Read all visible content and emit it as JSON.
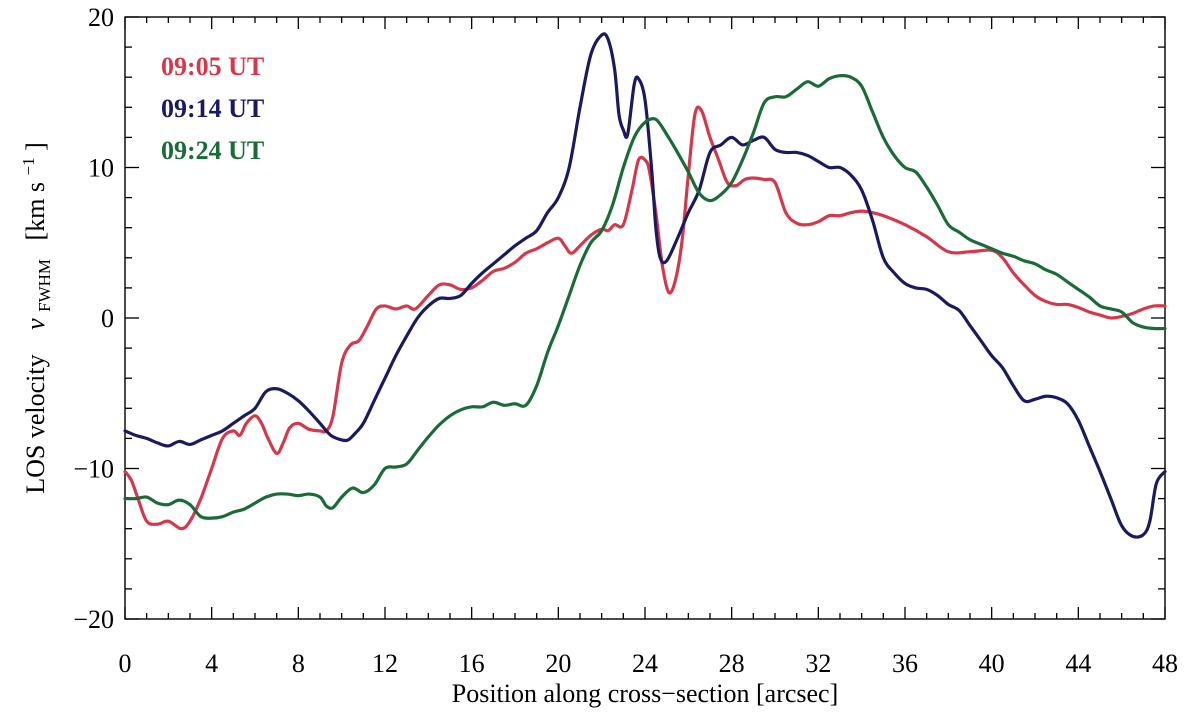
{
  "chart_data": {
    "type": "line",
    "title": "",
    "xlabel": "Position along cross−section   [arcsec]",
    "ylabel": {
      "prefix": "LOS velocity",
      "var": "v",
      "sub": "FWHM",
      "unit_open": "[km s",
      "sup": "−1",
      "unit_close": "]"
    },
    "xlim": [
      0,
      48
    ],
    "ylim": [
      -20,
      20
    ],
    "xticks": [
      0,
      4,
      8,
      12,
      16,
      20,
      24,
      28,
      32,
      36,
      40,
      44,
      48
    ],
    "xtick_labels": [
      "0",
      "4",
      "8",
      "12",
      "16",
      "20",
      "24",
      "28",
      "32",
      "36",
      "40",
      "44",
      "48"
    ],
    "yticks": [
      -20,
      -10,
      0,
      10,
      20
    ],
    "ytick_labels": [
      "−20",
      "−10",
      "0",
      "10",
      "20"
    ],
    "grid": false,
    "legend_position": "top-left",
    "series": [
      {
        "name": "09:05 UT",
        "color": "#d4384a",
        "points": [
          [
            0,
            -10.2
          ],
          [
            0.3,
            -10.8
          ],
          [
            0.6,
            -12
          ],
          [
            1,
            -13.5
          ],
          [
            1.5,
            -13.7
          ],
          [
            2,
            -13.5
          ],
          [
            2.6,
            -14
          ],
          [
            3,
            -13.5
          ],
          [
            3.5,
            -12
          ],
          [
            4,
            -10
          ],
          [
            4.5,
            -8
          ],
          [
            5,
            -7.5
          ],
          [
            5.3,
            -7.8
          ],
          [
            5.6,
            -7
          ],
          [
            6,
            -6.5
          ],
          [
            6.3,
            -7
          ],
          [
            6.6,
            -8
          ],
          [
            7,
            -9
          ],
          [
            7.3,
            -8.3
          ],
          [
            7.6,
            -7.3
          ],
          [
            8,
            -7
          ],
          [
            8.5,
            -7.4
          ],
          [
            9,
            -7.5
          ],
          [
            9.3,
            -7.5
          ],
          [
            9.6,
            -6.5
          ],
          [
            10,
            -3
          ],
          [
            10.4,
            -1.8
          ],
          [
            10.8,
            -1.5
          ],
          [
            11.2,
            -0.5
          ],
          [
            11.6,
            0.6
          ],
          [
            12,
            0.8
          ],
          [
            12.5,
            0.6
          ],
          [
            13,
            0.8
          ],
          [
            13.4,
            0.6
          ],
          [
            14,
            1.5
          ],
          [
            14.5,
            2.2
          ],
          [
            15,
            2.2
          ],
          [
            15.5,
            1.9
          ],
          [
            16,
            2
          ],
          [
            16.5,
            2.5
          ],
          [
            17,
            3.1
          ],
          [
            17.5,
            3.3
          ],
          [
            18,
            3.7
          ],
          [
            18.5,
            4.3
          ],
          [
            19,
            4.6
          ],
          [
            19.5,
            5
          ],
          [
            20,
            5.3
          ],
          [
            20.3,
            4.8
          ],
          [
            20.6,
            4.3
          ],
          [
            21,
            4.8
          ],
          [
            21.5,
            5.5
          ],
          [
            22,
            5.9
          ],
          [
            22.3,
            5.8
          ],
          [
            22.6,
            6.2
          ],
          [
            23,
            6.2
          ],
          [
            23.4,
            8.5
          ],
          [
            23.7,
            10.5
          ],
          [
            24,
            10.5
          ],
          [
            24.2,
            9.8
          ],
          [
            24.5,
            7
          ],
          [
            24.8,
            3.5
          ],
          [
            25.1,
            1.7
          ],
          [
            25.4,
            2.5
          ],
          [
            25.7,
            5
          ],
          [
            26,
            9.5
          ],
          [
            26.3,
            13.5
          ],
          [
            26.6,
            13.8
          ],
          [
            27,
            12
          ],
          [
            27.4,
            10.5
          ],
          [
            27.8,
            9
          ],
          [
            28.2,
            8.8
          ],
          [
            28.6,
            9.2
          ],
          [
            29,
            9.3
          ],
          [
            29.5,
            9.2
          ],
          [
            30,
            9
          ],
          [
            30.5,
            7
          ],
          [
            31,
            6.3
          ],
          [
            31.5,
            6.2
          ],
          [
            32,
            6.4
          ],
          [
            32.5,
            6.8
          ],
          [
            33,
            6.8
          ],
          [
            33.5,
            7
          ],
          [
            34,
            7.1
          ],
          [
            34.5,
            7
          ],
          [
            35,
            6.8
          ],
          [
            36,
            6.2
          ],
          [
            37,
            5.4
          ],
          [
            38,
            4.4
          ],
          [
            39,
            4.4
          ],
          [
            40,
            4.5
          ],
          [
            40.5,
            4
          ],
          [
            41,
            3
          ],
          [
            41.5,
            2.2
          ],
          [
            42,
            1.5
          ],
          [
            42.5,
            1.1
          ],
          [
            43,
            0.9
          ],
          [
            43.5,
            0.9
          ],
          [
            44,
            0.7
          ],
          [
            44.5,
            0.4
          ],
          [
            45,
            0.2
          ],
          [
            45.5,
            0
          ],
          [
            46,
            0.1
          ],
          [
            46.5,
            0.3
          ],
          [
            47,
            0.6
          ],
          [
            47.5,
            0.8
          ],
          [
            48,
            0.8
          ]
        ]
      },
      {
        "name": "09:14 UT",
        "color": "#1a1a5e",
        "points": [
          [
            0,
            -7.5
          ],
          [
            0.5,
            -7.8
          ],
          [
            1,
            -8
          ],
          [
            1.5,
            -8.3
          ],
          [
            2,
            -8.5
          ],
          [
            2.5,
            -8.2
          ],
          [
            3,
            -8.4
          ],
          [
            3.5,
            -8.1
          ],
          [
            4,
            -7.8
          ],
          [
            4.5,
            -7.5
          ],
          [
            5,
            -7
          ],
          [
            5.5,
            -6.5
          ],
          [
            6,
            -6
          ],
          [
            6.5,
            -4.9
          ],
          [
            7,
            -4.7
          ],
          [
            7.5,
            -5
          ],
          [
            8,
            -5.5
          ],
          [
            8.5,
            -6.2
          ],
          [
            9,
            -7
          ],
          [
            9.5,
            -7.8
          ],
          [
            10,
            -8.1
          ],
          [
            10.3,
            -8.1
          ],
          [
            10.6,
            -7.7
          ],
          [
            11,
            -7
          ],
          [
            11.5,
            -5.5
          ],
          [
            12,
            -4
          ],
          [
            12.5,
            -2.5
          ],
          [
            13,
            -1.2
          ],
          [
            13.5,
            0
          ],
          [
            14,
            0.8
          ],
          [
            14.5,
            1.3
          ],
          [
            15,
            1.3
          ],
          [
            15.5,
            1.5
          ],
          [
            16,
            2.3
          ],
          [
            16.5,
            3
          ],
          [
            17,
            3.6
          ],
          [
            17.5,
            4.2
          ],
          [
            18,
            4.8
          ],
          [
            18.5,
            5.3
          ],
          [
            19,
            5.8
          ],
          [
            19.5,
            7
          ],
          [
            20,
            8
          ],
          [
            20.5,
            10
          ],
          [
            21,
            14
          ],
          [
            21.5,
            17.5
          ],
          [
            22,
            18.8
          ],
          [
            22.3,
            18.5
          ],
          [
            22.6,
            16.5
          ],
          [
            22.8,
            13.5
          ],
          [
            23,
            12.5
          ],
          [
            23.2,
            12.2
          ],
          [
            23.5,
            15.5
          ],
          [
            23.7,
            15.9
          ],
          [
            24,
            14.5
          ],
          [
            24.3,
            10
          ],
          [
            24.5,
            6
          ],
          [
            24.7,
            4
          ],
          [
            25,
            3.8
          ],
          [
            25.5,
            5.3
          ],
          [
            26,
            7
          ],
          [
            26.5,
            8.5
          ],
          [
            27,
            11
          ],
          [
            27.5,
            11.5
          ],
          [
            28,
            12
          ],
          [
            28.5,
            11.5
          ],
          [
            29,
            11.8
          ],
          [
            29.5,
            12
          ],
          [
            30,
            11.2
          ],
          [
            30.5,
            11
          ],
          [
            31,
            11
          ],
          [
            31.5,
            10.8
          ],
          [
            32,
            10.4
          ],
          [
            32.5,
            10
          ],
          [
            33,
            10
          ],
          [
            33.5,
            9.5
          ],
          [
            34,
            8.5
          ],
          [
            34.5,
            6.5
          ],
          [
            35,
            4
          ],
          [
            35.5,
            3
          ],
          [
            36,
            2.3
          ],
          [
            36.5,
            2
          ],
          [
            37,
            1.9
          ],
          [
            37.5,
            1.5
          ],
          [
            38,
            0.9
          ],
          [
            38.5,
            0.5
          ],
          [
            39,
            -0.5
          ],
          [
            39.5,
            -1.5
          ],
          [
            40,
            -2.5
          ],
          [
            40.5,
            -3.3
          ],
          [
            41,
            -4.5
          ],
          [
            41.5,
            -5.5
          ],
          [
            42,
            -5.4
          ],
          [
            42.5,
            -5.2
          ],
          [
            43,
            -5.3
          ],
          [
            43.5,
            -5.7
          ],
          [
            44,
            -6.8
          ],
          [
            44.5,
            -8.5
          ],
          [
            45,
            -10.2
          ],
          [
            45.5,
            -12
          ],
          [
            46,
            -13.8
          ],
          [
            46.5,
            -14.5
          ],
          [
            47,
            -14.4
          ],
          [
            47.3,
            -13.5
          ],
          [
            47.6,
            -11
          ],
          [
            48,
            -10.2
          ]
        ]
      },
      {
        "name": "09:24 UT",
        "color": "#1a6b37",
        "points": [
          [
            0,
            -12
          ],
          [
            0.5,
            -12
          ],
          [
            1,
            -11.9
          ],
          [
            1.5,
            -12.3
          ],
          [
            2,
            -12.4
          ],
          [
            2.5,
            -12.1
          ],
          [
            3,
            -12.4
          ],
          [
            3.5,
            -13.2
          ],
          [
            4,
            -13.3
          ],
          [
            4.5,
            -13.2
          ],
          [
            5,
            -12.9
          ],
          [
            5.5,
            -12.7
          ],
          [
            6,
            -12.3
          ],
          [
            6.5,
            -11.9
          ],
          [
            7,
            -11.7
          ],
          [
            7.5,
            -11.7
          ],
          [
            8,
            -11.8
          ],
          [
            8.5,
            -11.7
          ],
          [
            9,
            -11.9
          ],
          [
            9.3,
            -12.5
          ],
          [
            9.6,
            -12.6
          ],
          [
            10,
            -11.9
          ],
          [
            10.5,
            -11.3
          ],
          [
            11,
            -11.6
          ],
          [
            11.5,
            -11.1
          ],
          [
            12,
            -10
          ],
          [
            12.5,
            -9.9
          ],
          [
            13,
            -9.7
          ],
          [
            13.5,
            -8.8
          ],
          [
            14,
            -7.9
          ],
          [
            14.5,
            -7.1
          ],
          [
            15,
            -6.5
          ],
          [
            15.5,
            -6.1
          ],
          [
            16,
            -5.9
          ],
          [
            16.5,
            -5.9
          ],
          [
            17,
            -5.6
          ],
          [
            17.5,
            -5.8
          ],
          [
            18,
            -5.7
          ],
          [
            18.5,
            -5.8
          ],
          [
            19,
            -4.5
          ],
          [
            19.5,
            -2.3
          ],
          [
            20,
            -0.5
          ],
          [
            20.5,
            1.5
          ],
          [
            21,
            3.5
          ],
          [
            21.5,
            5
          ],
          [
            22,
            5.8
          ],
          [
            22.5,
            7.5
          ],
          [
            23,
            10
          ],
          [
            23.5,
            12
          ],
          [
            24,
            13
          ],
          [
            24.5,
            13.2
          ],
          [
            25,
            12.2
          ],
          [
            25.5,
            11
          ],
          [
            26,
            9.7
          ],
          [
            26.5,
            8.3
          ],
          [
            27,
            7.8
          ],
          [
            27.5,
            8.2
          ],
          [
            28,
            9
          ],
          [
            28.5,
            10.5
          ],
          [
            29,
            12.3
          ],
          [
            29.5,
            14.3
          ],
          [
            30,
            14.7
          ],
          [
            30.5,
            14.7
          ],
          [
            31,
            15.2
          ],
          [
            31.5,
            15.7
          ],
          [
            32,
            15.4
          ],
          [
            32.5,
            15.9
          ],
          [
            33,
            16.1
          ],
          [
            33.5,
            16
          ],
          [
            34,
            15.4
          ],
          [
            34.5,
            13.7
          ],
          [
            35,
            12
          ],
          [
            35.5,
            10.8
          ],
          [
            36,
            10
          ],
          [
            36.5,
            9.7
          ],
          [
            37,
            8.7
          ],
          [
            37.5,
            7.5
          ],
          [
            38,
            6.2
          ],
          [
            38.5,
            5.7
          ],
          [
            39,
            5.2
          ],
          [
            39.5,
            4.9
          ],
          [
            40,
            4.6
          ],
          [
            40.5,
            4.3
          ],
          [
            41,
            4.1
          ],
          [
            41.5,
            3.8
          ],
          [
            42,
            3.6
          ],
          [
            42.5,
            3.2
          ],
          [
            43,
            2.9
          ],
          [
            43.5,
            2.4
          ],
          [
            44,
            1.9
          ],
          [
            44.5,
            1.4
          ],
          [
            45,
            0.8
          ],
          [
            45.5,
            0.6
          ],
          [
            46,
            0.4
          ],
          [
            46.5,
            -0.3
          ],
          [
            47,
            -0.6
          ],
          [
            47.5,
            -0.7
          ],
          [
            48,
            -0.7
          ]
        ]
      }
    ]
  }
}
